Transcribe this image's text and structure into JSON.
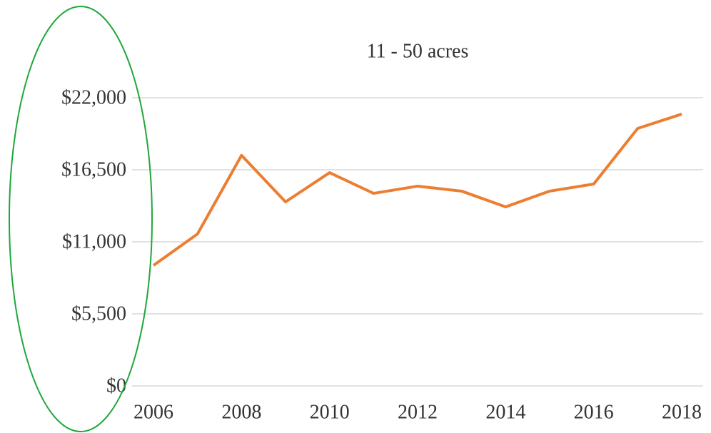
{
  "chart_data": {
    "type": "line",
    "title": "11 - 50 acres",
    "x": [
      2006,
      2007,
      2008,
      2009,
      2010,
      2011,
      2012,
      2013,
      2014,
      2015,
      2016,
      2017,
      2018
    ],
    "series": [
      {
        "name": "11 - 50 acres",
        "color": "#ed7d31",
        "values": [
          9200,
          11600,
          17600,
          14050,
          16280,
          14700,
          15250,
          14870,
          13670,
          14870,
          15410,
          19660,
          20750
        ]
      }
    ],
    "xlim": [
      2006,
      2018
    ],
    "xticks": [
      2006,
      2008,
      2010,
      2012,
      2014,
      2016,
      2018
    ],
    "ylim": [
      0,
      22000
    ],
    "yticks": [
      {
        "value": 0,
        "label": "$0"
      },
      {
        "value": 5500,
        "label": "$5,500"
      },
      {
        "value": 11000,
        "label": "$11,000"
      },
      {
        "value": 16500,
        "label": "$16,500"
      },
      {
        "value": 22000,
        "label": "$22,000"
      }
    ],
    "grid": true
  }
}
